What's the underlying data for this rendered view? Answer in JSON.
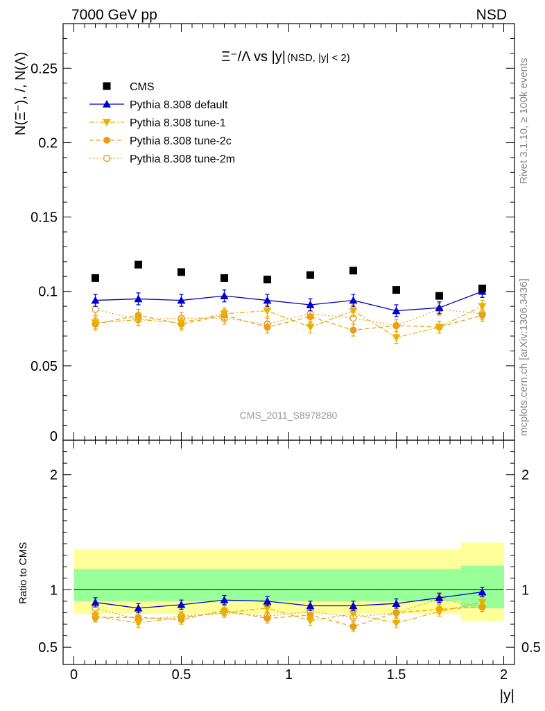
{
  "header": {
    "left": "7000 GeV pp",
    "right": "NSD"
  },
  "side_labels": {
    "rivet": "Rivet 3.1.10, ≥ 100k events",
    "mcplots": "mcplots.cern.ch [arXiv:1306.3436]"
  },
  "chart_data": {
    "type": "scatter",
    "title": "Ξ⁻/Λ vs |y|",
    "title_suffix": "(NSD, |y| < 2)",
    "watermark": "CMS_2011_S8978280",
    "xlabel": "|y|",
    "ylabel": "N(Ξ⁻), /, N(Λ)",
    "ratio_ylabel": "Ratio to CMS",
    "xlim": [
      -0.05,
      2.05
    ],
    "ylim": [
      0,
      0.28
    ],
    "ratio_ylim": [
      0.35,
      2.3
    ],
    "x_ticks": [
      "0",
      "0.5",
      "1",
      "1.5",
      "2"
    ],
    "y_ticks": [
      "0",
      "0.05",
      "0.1",
      "0.15",
      "0.2",
      "0.25"
    ],
    "ratio_y_ticks": [
      "0.5",
      "1",
      "2"
    ],
    "legend_position": "top-left",
    "x": [
      0.1,
      0.3,
      0.5,
      0.7,
      0.9,
      1.1,
      1.3,
      1.5,
      1.7,
      1.9
    ],
    "data_series": {
      "name": "CMS",
      "color": "#000000",
      "values": [
        0.109,
        0.118,
        0.113,
        0.109,
        0.108,
        0.111,
        0.114,
        0.101,
        0.097,
        0.102
      ]
    },
    "ratio_bands": {
      "x_edges": [
        0.0,
        0.2,
        0.4,
        0.6,
        0.8,
        1.0,
        1.2,
        1.4,
        1.6,
        1.8,
        2.0
      ],
      "inner_color": "#99ff99",
      "outer_color": "#ffff99",
      "inner_low": [
        0.9,
        0.9,
        0.9,
        0.9,
        0.9,
        0.9,
        0.9,
        0.9,
        0.9,
        0.84
      ],
      "inner_high": [
        1.18,
        1.18,
        1.18,
        1.18,
        1.18,
        1.18,
        1.18,
        1.18,
        1.18,
        1.21
      ],
      "outer_low": [
        0.79,
        0.79,
        0.79,
        0.79,
        0.79,
        0.79,
        0.79,
        0.79,
        0.79,
        0.73
      ],
      "outer_high": [
        1.35,
        1.35,
        1.35,
        1.35,
        1.35,
        1.35,
        1.35,
        1.35,
        1.35,
        1.41
      ]
    },
    "series": [
      {
        "name": "Pythia 8.308 default",
        "color": "#0000cc",
        "marker": "triangle-up",
        "line": "solid",
        "values": [
          0.094,
          0.095,
          0.094,
          0.097,
          0.094,
          0.091,
          0.094,
          0.087,
          0.089,
          0.1
        ],
        "errors": [
          0.004,
          0.004,
          0.004,
          0.004,
          0.004,
          0.004,
          0.004,
          0.004,
          0.004,
          0.004
        ],
        "ratio": [
          0.89,
          0.84,
          0.87,
          0.91,
          0.9,
          0.86,
          0.86,
          0.88,
          0.93,
          0.98
        ],
        "ratio_errors": [
          0.04,
          0.04,
          0.04,
          0.04,
          0.04,
          0.04,
          0.04,
          0.04,
          0.04,
          0.04
        ]
      },
      {
        "name": "Pythia 8.308 tune-1",
        "color": "#e8b000",
        "marker": "triangle-down",
        "line": "dashdot",
        "values": [
          0.079,
          0.081,
          0.079,
          0.085,
          0.087,
          0.076,
          0.087,
          0.069,
          0.076,
          0.09
        ],
        "errors": [
          0.004,
          0.004,
          0.004,
          0.004,
          0.004,
          0.004,
          0.004,
          0.004,
          0.004,
          0.004
        ],
        "ratio": [
          0.77,
          0.71,
          0.76,
          0.8,
          0.84,
          0.73,
          0.79,
          0.71,
          0.81,
          0.89
        ],
        "ratio_errors": [
          0.04,
          0.04,
          0.04,
          0.04,
          0.04,
          0.04,
          0.04,
          0.04,
          0.04,
          0.04
        ]
      },
      {
        "name": "Pythia 8.308 tune-2c",
        "color": "#e8a010",
        "marker": "circle",
        "line": "dashed",
        "values": [
          0.078,
          0.084,
          0.078,
          0.084,
          0.076,
          0.083,
          0.074,
          0.077,
          0.076,
          0.084
        ],
        "errors": [
          0.004,
          0.004,
          0.004,
          0.004,
          0.004,
          0.004,
          0.004,
          0.004,
          0.004,
          0.004
        ],
        "ratio": [
          0.76,
          0.76,
          0.74,
          0.82,
          0.75,
          0.78,
          0.68,
          0.8,
          0.83,
          0.85
        ],
        "ratio_errors": [
          0.04,
          0.04,
          0.04,
          0.04,
          0.04,
          0.04,
          0.04,
          0.04,
          0.04,
          0.04
        ]
      },
      {
        "name": "Pythia 8.308 tune-2m",
        "color": "#e8a030",
        "marker": "open-circle",
        "line": "dotted",
        "values": [
          0.088,
          0.081,
          0.082,
          0.082,
          0.078,
          0.085,
          0.082,
          0.077,
          0.088,
          0.085
        ],
        "errors": [
          0.004,
          0.004,
          0.004,
          0.004,
          0.004,
          0.004,
          0.004,
          0.004,
          0.004,
          0.004
        ],
        "ratio": [
          0.84,
          0.74,
          0.77,
          0.8,
          0.77,
          0.81,
          0.76,
          0.8,
          0.92,
          0.85
        ],
        "ratio_errors": [
          0.04,
          0.04,
          0.04,
          0.04,
          0.04,
          0.04,
          0.04,
          0.04,
          0.04,
          0.04
        ]
      }
    ]
  }
}
